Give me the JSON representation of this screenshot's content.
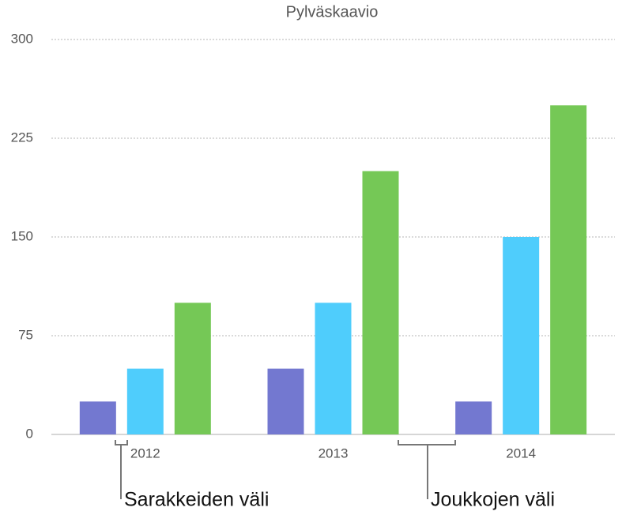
{
  "chart_data": {
    "type": "bar",
    "title": "Pylväskaavio",
    "categories": [
      "2012",
      "2013",
      "2014"
    ],
    "series": [
      {
        "color": "#7378d0",
        "values": [
          25,
          50,
          25
        ]
      },
      {
        "color": "#4fcdfc",
        "values": [
          50,
          100,
          150
        ]
      },
      {
        "color": "#75c856",
        "values": [
          100,
          200,
          250
        ]
      }
    ],
    "ylim": [
      0,
      300
    ],
    "yticks": [
      0,
      75,
      150,
      225,
      300
    ],
    "grid": true,
    "annotations": [
      "Sarakkeiden väli",
      "Joukkojen väli"
    ]
  }
}
